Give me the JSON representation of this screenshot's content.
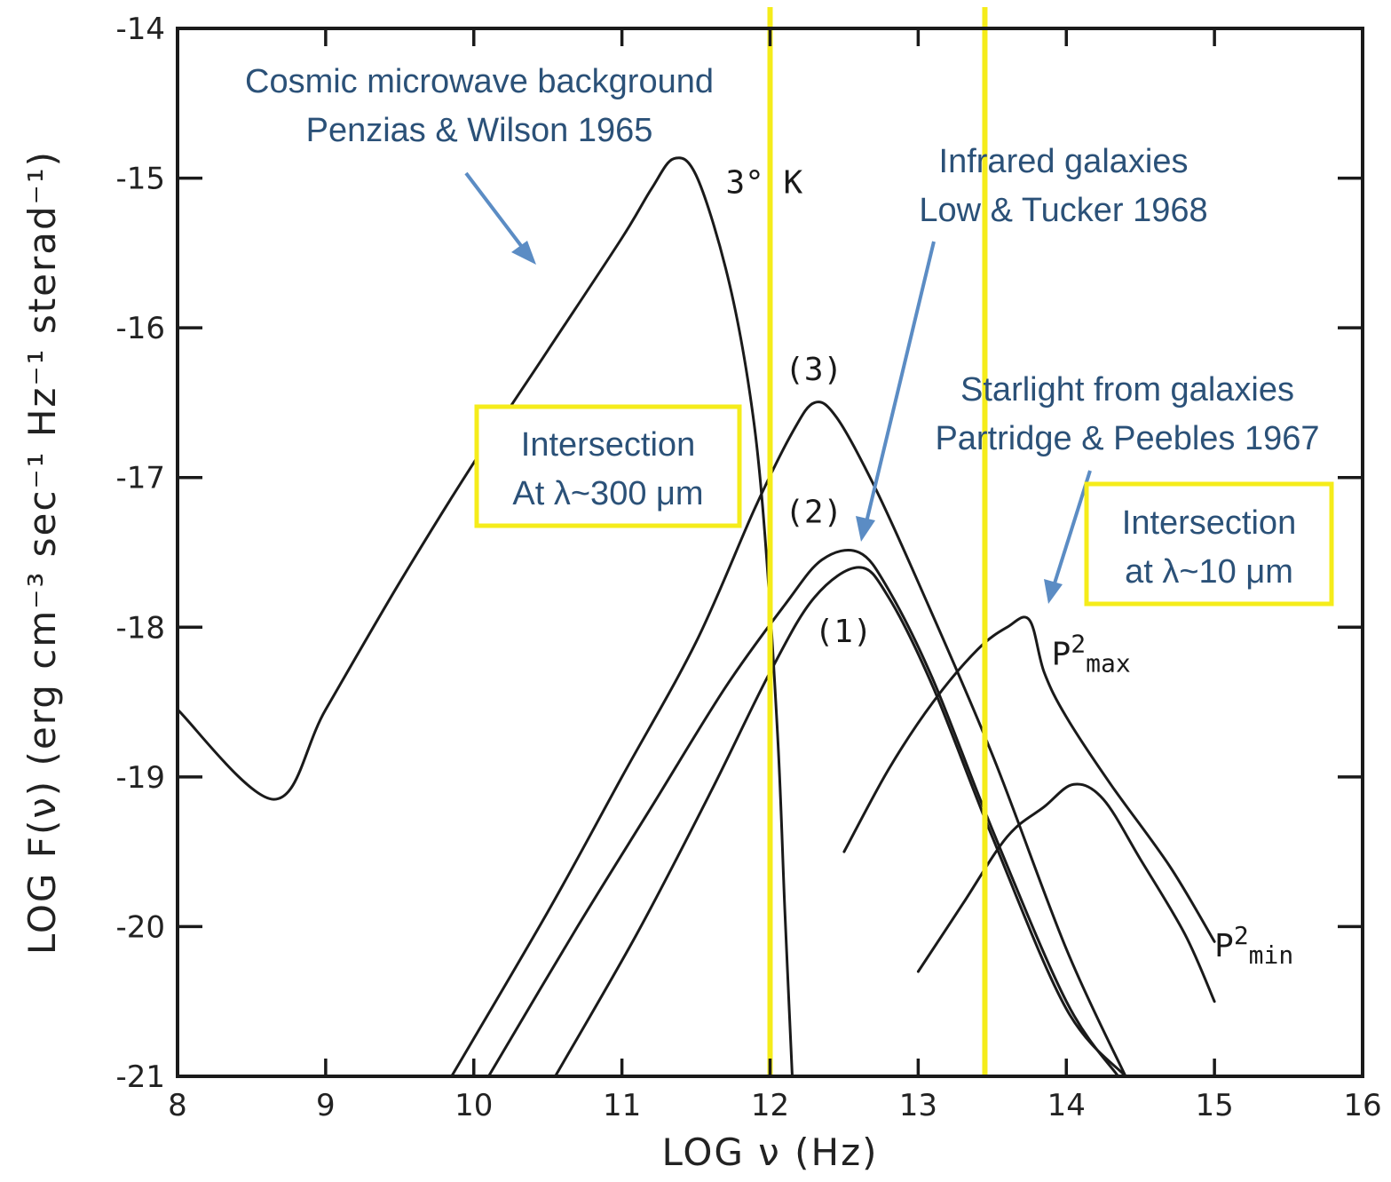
{
  "chart_data": {
    "type": "line",
    "title": "",
    "xlabel": "LOG ν (Hz)",
    "ylabel": "LOG   F(ν) (erg cm⁻³ sec⁻¹ Hz⁻¹ sterad⁻¹)",
    "xlim": [
      8,
      16
    ],
    "ylim": [
      -21,
      -14
    ],
    "x_ticks": [
      "8",
      "9",
      "10",
      "11",
      "12",
      "13",
      "14",
      "15",
      "16"
    ],
    "y_ticks": [
      "-14",
      "-15",
      "-16",
      "-17",
      "-18",
      "-19",
      "-20",
      "-21"
    ],
    "series": [
      {
        "name": "3° K",
        "x": [
          8.0,
          8.65,
          9.0,
          9.5,
          10.0,
          10.5,
          11.0,
          11.2,
          11.35,
          11.5,
          11.7,
          11.85,
          11.95,
          12.05,
          12.1,
          12.15
        ],
        "y": [
          -18.55,
          -19.15,
          -18.55,
          -17.7,
          -16.9,
          -16.15,
          -15.4,
          -15.07,
          -14.87,
          -14.98,
          -15.6,
          -16.35,
          -17.2,
          -18.7,
          -19.9,
          -21.0
        ]
      },
      {
        "name": "(3)",
        "x": [
          9.85,
          10.5,
          11.0,
          11.5,
          11.9,
          12.15,
          12.3,
          12.45,
          12.7,
          13.0,
          13.5,
          14.0,
          14.4
        ],
        "y": [
          -21.0,
          -19.9,
          -19.0,
          -18.1,
          -17.2,
          -16.7,
          -16.5,
          -16.6,
          -17.05,
          -17.7,
          -18.85,
          -20.15,
          -21.0
        ]
      },
      {
        "name": "(2)",
        "x": [
          10.1,
          10.7,
          11.2,
          11.7,
          12.1,
          12.35,
          12.6,
          12.8,
          13.1,
          13.5,
          14.0,
          14.35
        ],
        "y": [
          -21.0,
          -20.0,
          -19.2,
          -18.4,
          -17.85,
          -17.55,
          -17.5,
          -17.75,
          -18.35,
          -19.35,
          -20.5,
          -21.0
        ]
      },
      {
        "name": "(1)",
        "x": [
          10.55,
          11.1,
          11.6,
          12.0,
          12.3,
          12.6,
          12.8,
          13.1,
          13.5,
          14.0,
          14.4
        ],
        "y": [
          -21.0,
          -20.05,
          -19.1,
          -18.3,
          -17.8,
          -17.6,
          -17.8,
          -18.4,
          -19.4,
          -20.55,
          -21.0
        ]
      },
      {
        "name": "P²max",
        "x": [
          12.5,
          12.8,
          13.1,
          13.4,
          13.6,
          13.75,
          13.85,
          14.0,
          14.3,
          14.7,
          15.0
        ],
        "y": [
          -19.5,
          -18.95,
          -18.5,
          -18.15,
          -18.0,
          -17.95,
          -18.3,
          -18.6,
          -19.05,
          -19.6,
          -20.1
        ]
      },
      {
        "name": "P²min",
        "x": [
          13.0,
          13.3,
          13.6,
          13.85,
          14.05,
          14.25,
          14.5,
          14.8,
          15.0
        ],
        "y": [
          -20.3,
          -19.85,
          -19.4,
          -19.2,
          -19.05,
          -19.15,
          -19.55,
          -20.05,
          -20.5
        ]
      }
    ],
    "curve_labels": [
      {
        "text": "3° K",
        "x": 11.7,
        "y": -15.1
      },
      {
        "text": "(3)",
        "x": 12.1,
        "y": -16.35
      },
      {
        "text": "(2)",
        "x": 12.1,
        "y": -17.3
      },
      {
        "text": "(1)",
        "x": 12.3,
        "y": -18.1
      },
      {
        "text": "P",
        "sup": "2",
        "sub": "max",
        "x": 13.9,
        "y": -18.25
      },
      {
        "text": "P",
        "sup": "2",
        "sub": "min",
        "x": 15.0,
        "y": -20.2
      }
    ],
    "vertical_lines": [
      12.0,
      13.45
    ],
    "annotations": [
      {
        "lines": [
          "Cosmic microwave background",
          "Penzias & Wilson 1965"
        ]
      },
      {
        "lines": [
          "Infrared galaxies",
          "Low & Tucker 1968"
        ]
      },
      {
        "lines": [
          "Starlight from galaxies",
          "Partridge & Peebles 1967"
        ]
      }
    ],
    "boxes": [
      {
        "lines": [
          "Intersection",
          "At λ~300 μm"
        ]
      },
      {
        "lines": [
          "Intersection",
          "at λ~10 μm"
        ]
      }
    ],
    "grid": false,
    "legend": "none"
  }
}
